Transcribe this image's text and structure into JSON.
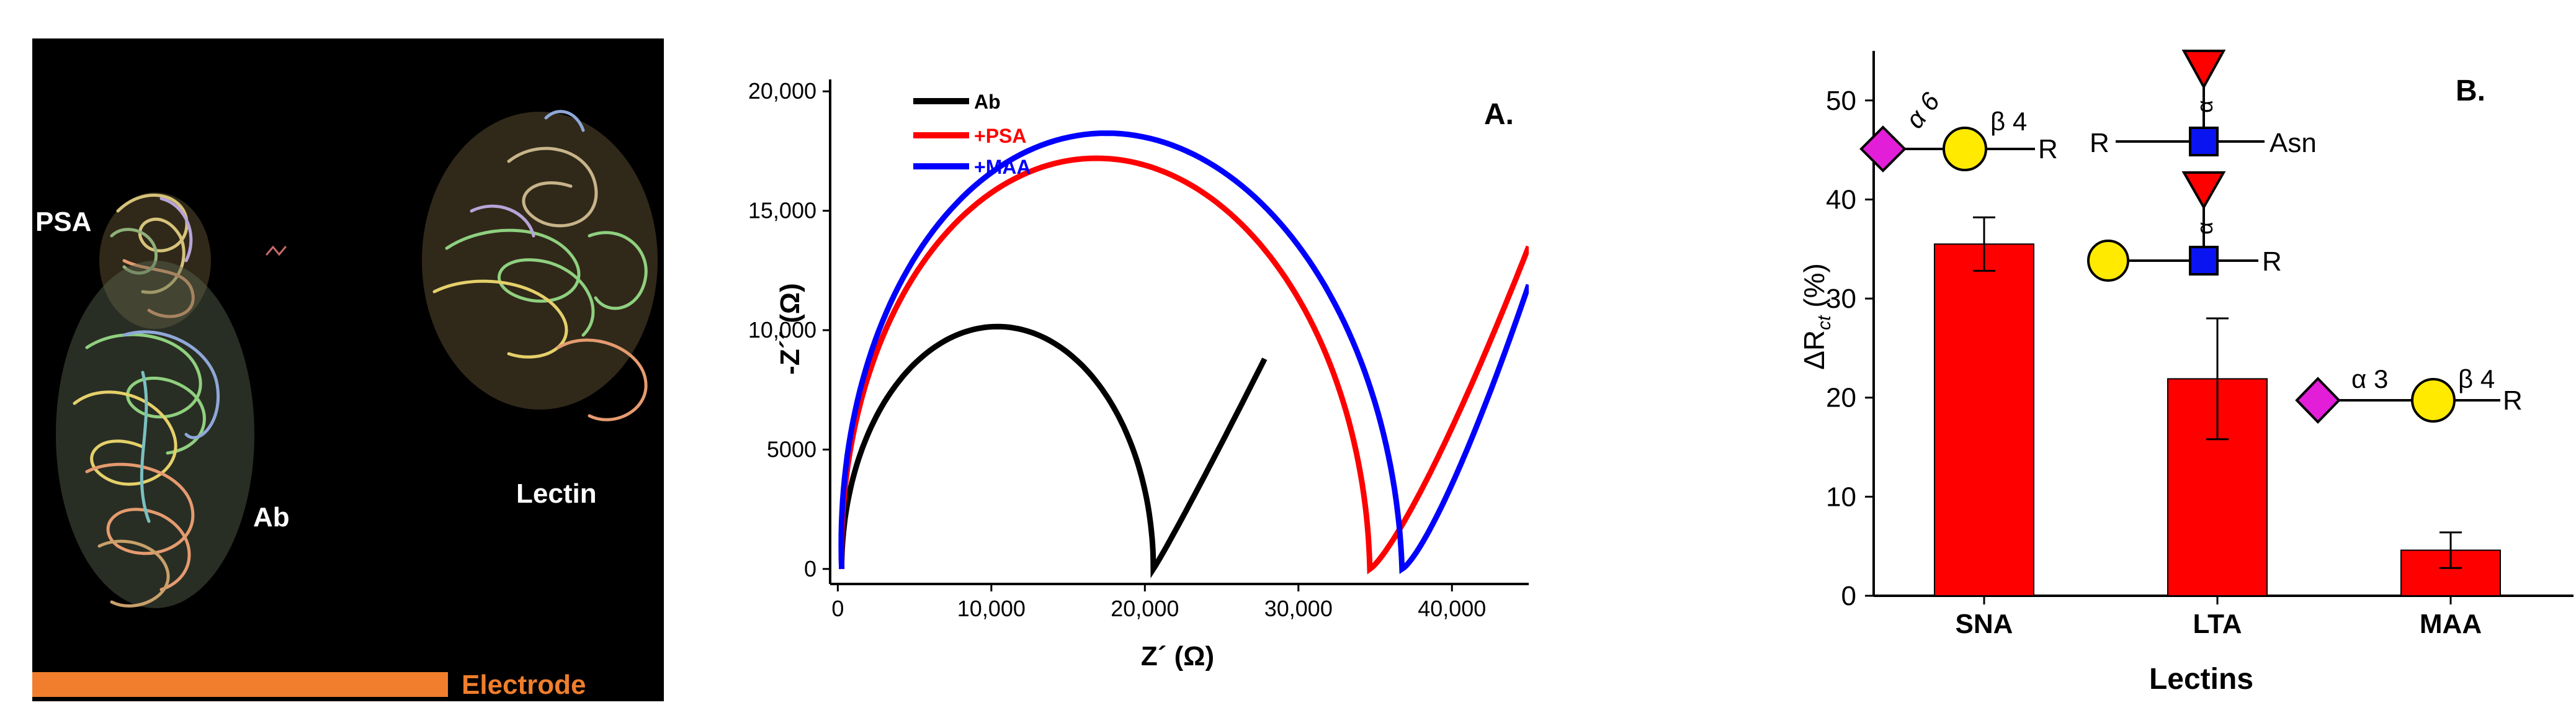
{
  "photo": {
    "labels": {
      "psa": "PSA",
      "ab": "Ab",
      "lectin": "Lectin",
      "electrode": "Electrode"
    },
    "colors": {
      "background": "#000000",
      "electrode": "#f07e2c"
    }
  },
  "chart_data": [
    {
      "type": "line",
      "panel_label": "A.",
      "xlabel": "Z´ (Ω)",
      "ylabel": "-Z´´ (Ω)",
      "xlim": [
        -500,
        45000
      ],
      "ylim": [
        -500,
        20500
      ],
      "xticks": [
        0,
        10000,
        20000,
        30000,
        40000
      ],
      "xtick_labels": [
        "0",
        "10,000",
        "20,000",
        "30,000",
        "40,000"
      ],
      "yticks": [
        0,
        5000,
        10000,
        15000,
        20000
      ],
      "ytick_labels": [
        "0",
        "5000",
        "10,000",
        "15,000",
        "20,000"
      ],
      "legend": [
        "Ab",
        "+PSA",
        "+MAA"
      ],
      "series": [
        {
          "name": "Ab",
          "color": "#000000",
          "kind": "nyquist",
          "params": {
            "r0": 250,
            "rct": 20300,
            "peak_shift": 0,
            "tail_end_x": 27800,
            "tail_end_y": 8800,
            "tail_curve": 1.05
          }
        },
        {
          "name": "+PSA",
          "color": "#ff0000",
          "kind": "nyquist",
          "params": {
            "r0": 250,
            "rct": 34400,
            "peak_shift": -600,
            "tail_end_x": 45000,
            "tail_end_y": 13500,
            "tail_curve": 1.25
          }
        },
        {
          "name": "+MAA",
          "color": "#0000ff",
          "kind": "nyquist",
          "params": {
            "r0": 250,
            "rct": 36500,
            "peak_shift": -1000,
            "tail_end_x": 45000,
            "tail_end_y": 11900,
            "tail_curve": 1.3
          }
        }
      ]
    },
    {
      "type": "bar",
      "panel_label": "B.",
      "categories": [
        "SNA",
        "LTA",
        "MAA"
      ],
      "values": [
        35.5,
        21.9,
        4.6
      ],
      "errors": [
        2.7,
        6.1,
        1.8
      ],
      "xlabel": "Lectins",
      "ylabel": "ΔR",
      "ylabel_sub": "ct",
      "ylabel_suffix": " (%)",
      "ylim": [
        0,
        55
      ],
      "yticks": [
        0,
        10,
        20,
        30,
        40,
        50
      ],
      "ytick_labels": [
        "0",
        "10",
        "20",
        "30",
        "40",
        "50"
      ],
      "bar_color": "#ff0000",
      "glycans": {
        "sna": {
          "alpha_label": "α 6",
          "beta_label": "β 4",
          "r_label": "R"
        },
        "lta_top": {
          "r_label": "R",
          "asn_label": "Asn",
          "alpha_label": "α"
        },
        "lta_bottom": {
          "r_label": "R",
          "alpha_label": "α"
        },
        "maa": {
          "alpha_label": "α 3",
          "beta_label": "β 4",
          "r_label": "R"
        }
      },
      "glycan_colors": {
        "sialic": "#e21ed8",
        "galactose": "#ffea00",
        "glcnac": "#0a14f0",
        "fucose": "#ff0000"
      }
    }
  ]
}
